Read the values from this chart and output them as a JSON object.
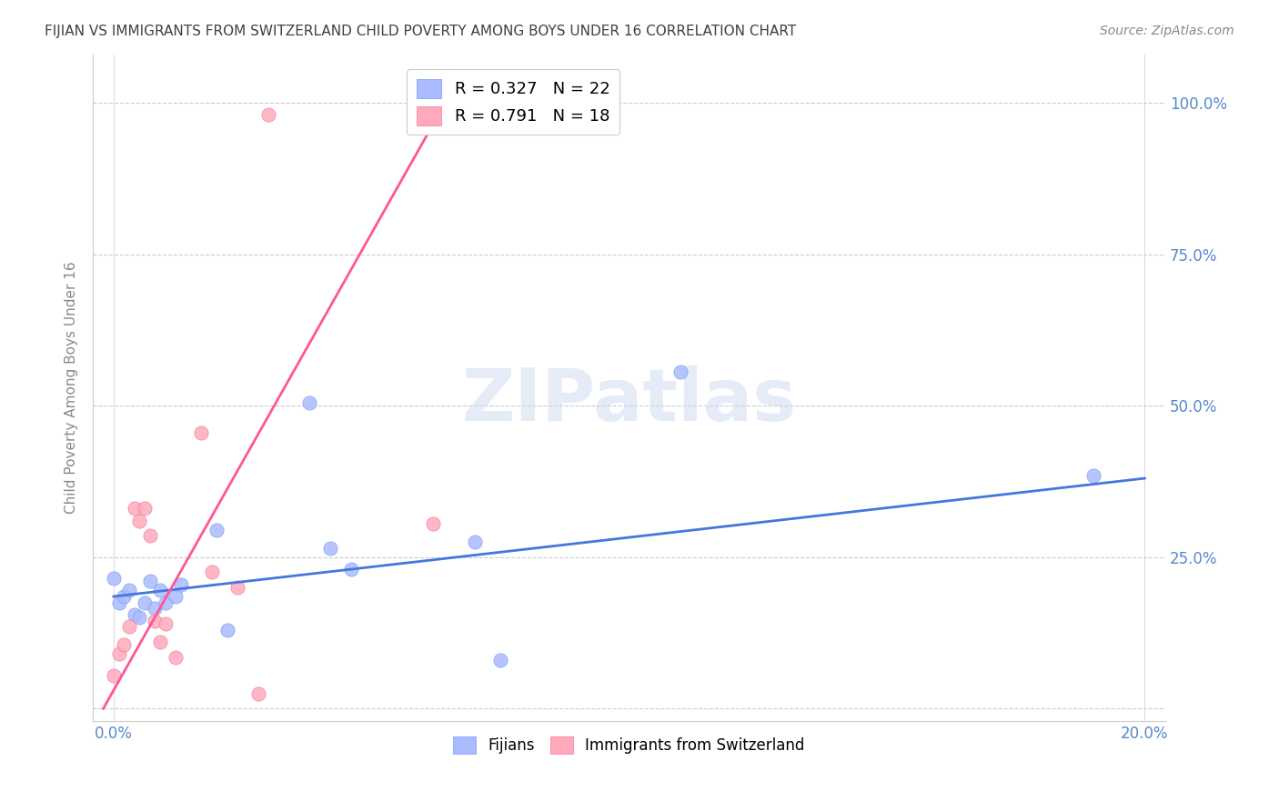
{
  "title": "FIJIAN VS IMMIGRANTS FROM SWITZERLAND CHILD POVERTY AMONG BOYS UNDER 16 CORRELATION CHART",
  "source": "Source: ZipAtlas.com",
  "ylabel": "Child Poverty Among Boys Under 16",
  "title_color": "#404040",
  "source_color": "#888888",
  "background_color": "#ffffff",
  "grid_color": "#cccccc",
  "fijians_scatter_x": [
    0.0,
    0.001,
    0.002,
    0.003,
    0.004,
    0.005,
    0.006,
    0.007,
    0.008,
    0.009,
    0.01,
    0.012,
    0.013,
    0.02,
    0.022,
    0.038,
    0.042,
    0.046,
    0.07,
    0.075,
    0.11,
    0.19
  ],
  "fijians_scatter_y": [
    0.215,
    0.175,
    0.185,
    0.195,
    0.155,
    0.15,
    0.175,
    0.21,
    0.165,
    0.195,
    0.175,
    0.185,
    0.205,
    0.295,
    0.13,
    0.505,
    0.265,
    0.23,
    0.275,
    0.08,
    0.555,
    0.385
  ],
  "swiss_scatter_x": [
    0.0,
    0.001,
    0.002,
    0.003,
    0.004,
    0.005,
    0.006,
    0.007,
    0.008,
    0.009,
    0.01,
    0.012,
    0.017,
    0.019,
    0.024,
    0.028,
    0.03,
    0.062
  ],
  "swiss_scatter_y": [
    0.055,
    0.09,
    0.105,
    0.135,
    0.33,
    0.31,
    0.33,
    0.285,
    0.145,
    0.11,
    0.14,
    0.085,
    0.455,
    0.225,
    0.2,
    0.025,
    0.98,
    0.305
  ],
  "fijian_R": 0.327,
  "fijian_N": 22,
  "swiss_R": 0.791,
  "swiss_N": 18,
  "fijian_line_x": [
    0.0,
    0.2
  ],
  "fijian_line_y": [
    0.185,
    0.38
  ],
  "swiss_line_x": [
    -0.002,
    0.065
  ],
  "swiss_line_y": [
    0.0,
    1.01
  ],
  "xlim": [
    -0.004,
    0.204
  ],
  "ylim": [
    -0.02,
    1.08
  ],
  "x_ticks": [
    0.0,
    0.2
  ],
  "x_tick_labels": [
    "0.0%",
    "20.0%"
  ],
  "y_ticks": [
    0.0,
    0.25,
    0.5,
    0.75,
    1.0
  ],
  "y_tick_labels_right": [
    "",
    "25.0%",
    "50.0%",
    "75.0%",
    "100.0%"
  ],
  "fijian_color": "#aabbff",
  "fijian_edge_color": "#7799ee",
  "fijian_line_color": "#4477dd",
  "swiss_color": "#ffaabb",
  "swiss_edge_color": "#ee7799",
  "swiss_line_color": "#ff5599",
  "legend_fijian_label": "R = 0.327   N = 22",
  "legend_swiss_label": "R = 0.791   N = 18",
  "legend_bottom_fijian": "Fijians",
  "legend_bottom_swiss": "Immigrants from Switzerland",
  "watermark": "ZIPatlas",
  "watermark_color": "#ccd8f0",
  "watermark_alpha": 0.5
}
